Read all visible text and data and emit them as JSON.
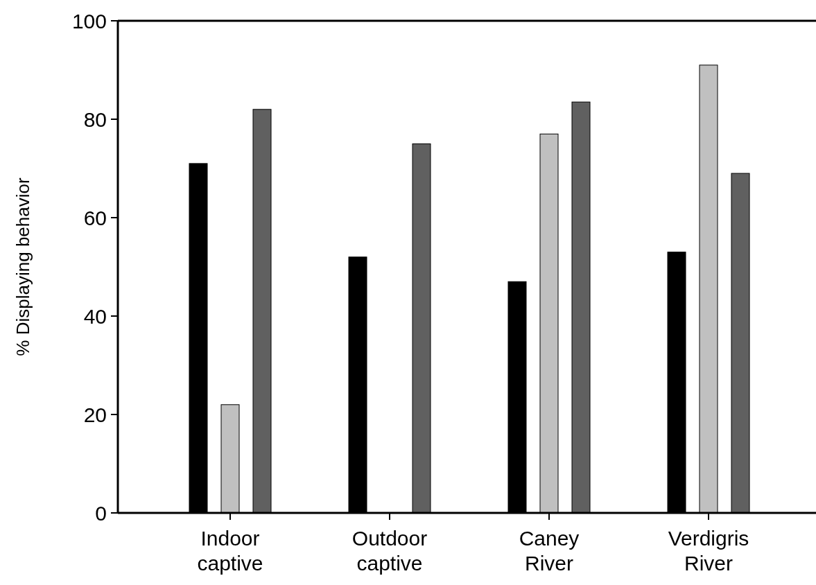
{
  "chart_data": {
    "type": "bar",
    "ylabel": "% Displaying behavior",
    "categories": [
      "Indoor captive",
      "Outdoor captive",
      "Caney River",
      "Verdigris River"
    ],
    "series": [
      {
        "color": "#000000",
        "values": [
          71,
          52,
          47,
          53
        ]
      },
      {
        "color": "#c0c0c0",
        "values": [
          22,
          0,
          77,
          91
        ]
      },
      {
        "color": "#606060",
        "values": [
          82,
          75,
          83.5,
          69
        ]
      }
    ],
    "ylim": [
      0,
      100
    ],
    "yticks": [
      0,
      20,
      40,
      60,
      80,
      100
    ],
    "grid": false
  }
}
